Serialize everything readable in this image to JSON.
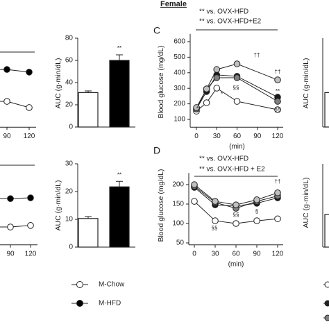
{
  "header": "Female",
  "chart_data": [
    {
      "type": "line",
      "x": [
        90,
        120
      ],
      "xlim": [
        0,
        120
      ],
      "xticks": [
        90,
        120
      ],
      "ylim": [
        50,
        650
      ],
      "legend": "bottom",
      "series": [
        {
          "name": "M-Chow",
          "color": "#ffffff",
          "values": [
            216,
            176
          ]
        },
        {
          "name": "M-HFD",
          "color": "#000000",
          "values": [
            421,
            404
          ]
        }
      ]
    },
    {
      "type": "bar",
      "categories": [
        null,
        null
      ],
      "values": [
        31,
        60
      ],
      "errors": [
        1.5,
        5
      ],
      "colors": [
        "#ffffff",
        "#000000"
      ],
      "ylim": [
        0,
        80
      ],
      "yticks": [
        0,
        20,
        40,
        60,
        80
      ],
      "ylabel": "AUC (g·min/dL)",
      "annotations": [
        "**"
      ]
    },
    {
      "type": "line",
      "panel_label": "C",
      "x": [
        0,
        15,
        30,
        60,
        120
      ],
      "xlim": [
        0,
        120
      ],
      "xticks": [
        0,
        30,
        60,
        90,
        120
      ],
      "ylim": [
        50,
        650
      ],
      "yticks": [
        100,
        200,
        300,
        400,
        500,
        600
      ],
      "xlabel": "(min)",
      "ylabel": "Blood glucose (mg/dL)",
      "annotations": [
        "** vs. OVX-HFD",
        "** vs. OVX-HFD+E2",
        "**",
        "*",
        "††",
        "††",
        "§§",
        "§§",
        "**"
      ],
      "series": [
        {
          "color": "#ffffff",
          "values": [
            153,
            207,
            301,
            216,
            162
          ]
        },
        {
          "color": "#1a1a1a",
          "values": [
            167,
            279,
            386,
            377,
            243
          ]
        },
        {
          "color": "#808080",
          "values": [
            167,
            296,
            368,
            368,
            216
          ]
        },
        {
          "color": "#c0c0c0",
          "values": [
            176,
            296,
            421,
            457,
            354
          ]
        }
      ]
    },
    {
      "type": "bar",
      "categories": [
        null
      ],
      "values": [
        31
      ],
      "colors": [
        "#ffffff"
      ],
      "ylim": [
        0,
        80
      ],
      "ylabel": "AUC (g·min/dL)"
    },
    {
      "type": "line",
      "x": [
        90,
        120
      ],
      "xlim": [
        0,
        120
      ],
      "xticks": [
        90,
        120
      ],
      "ylim": [
        45,
        230
      ],
      "series": [
        {
          "name": "M-Chow",
          "color": "#ffffff",
          "values": [
            91,
            95
          ]
        },
        {
          "name": "M-HFD",
          "color": "#000000",
          "values": [
            164,
            166
          ]
        }
      ]
    },
    {
      "type": "bar",
      "categories": [
        null,
        null
      ],
      "values": [
        10.3,
        21.7
      ],
      "errors": [
        0.7,
        2
      ],
      "colors": [
        "#ffffff",
        "#000000"
      ],
      "ylim": [
        0,
        30
      ],
      "yticks": [
        0,
        10,
        20,
        30
      ],
      "ylabel": "AUC (g·min/dL)",
      "annotations": [
        "**"
      ]
    },
    {
      "type": "line",
      "panel_label": "D",
      "x": [
        0,
        30,
        60,
        90,
        120
      ],
      "xlim": [
        0,
        120
      ],
      "xticks": [
        0,
        30,
        60,
        90,
        120
      ],
      "ylim": [
        45,
        230
      ],
      "yticks": [
        50,
        100,
        150,
        200
      ],
      "xlabel": "(min)",
      "ylabel": "Blood glucose (mg/dL)",
      "annotations": [
        "** vs. OVX-HFD",
        "** vs. OVX-HFD + E2",
        "††",
        "§§",
        "§§",
        "§"
      ],
      "series": [
        {
          "color": "#ffffff",
          "values": [
            157,
            107,
            100,
            107,
            112
          ]
        },
        {
          "color": "#1a1a1a",
          "values": [
            193,
            148,
            145,
            152,
            166
          ]
        },
        {
          "color": "#808080",
          "values": [
            196,
            154,
            139,
            157,
            171
          ]
        },
        {
          "color": "#c0c0c0",
          "values": [
            200,
            157,
            148,
            161,
            179
          ]
        }
      ]
    },
    {
      "type": "bar",
      "categories": [
        null
      ],
      "values": [
        11.75
      ],
      "colors": [
        "#ffffff"
      ],
      "ylim": [
        0,
        30
      ],
      "ylabel": "AUC (g·min/dL)"
    }
  ]
}
